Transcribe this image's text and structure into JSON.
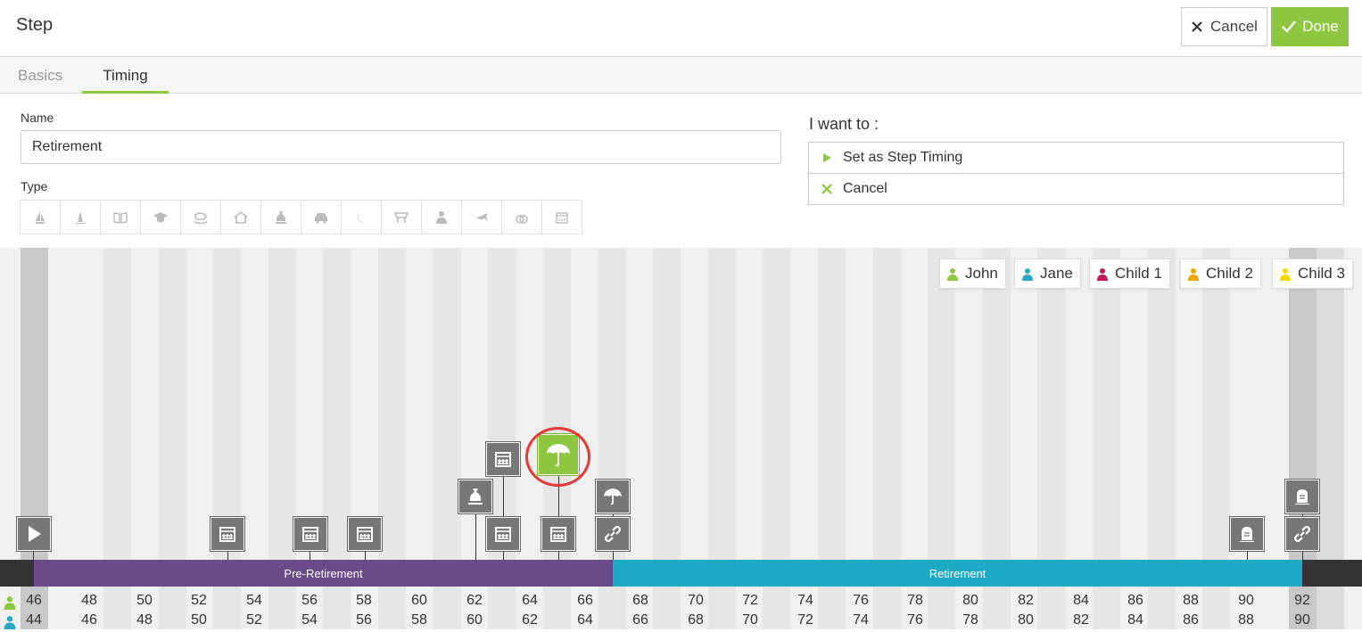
{
  "header": {
    "title": "Step",
    "cancel_label": "Cancel",
    "done_label": "Done"
  },
  "tabs": [
    {
      "label": "Basics"
    },
    {
      "label": "Timing"
    }
  ],
  "form": {
    "name_label": "Name",
    "name_value": "Retirement",
    "type_label": "Type",
    "type_icons": [
      "sailboat-icon",
      "cake-icon",
      "book-icon",
      "graduation-cap-icon",
      "rocking-horse-icon",
      "house-icon",
      "money-bag-icon",
      "car-icon",
      "moon-icon",
      "awning-icon",
      "person-icon",
      "airplane-icon",
      "rings-icon",
      "calendar-icon"
    ]
  },
  "actions": {
    "heading": "I want to :",
    "set_timing_label": "Set as Step Timing",
    "cancel_label": "Cancel"
  },
  "legend": [
    {
      "name": "John",
      "color": "#8dc63f"
    },
    {
      "name": "Jane",
      "color": "#29a8c4"
    },
    {
      "name": "Child 1",
      "color": "#c2185b"
    },
    {
      "name": "Child 2",
      "color": "#f0a500"
    },
    {
      "name": "Child 3",
      "color": "#f5d800"
    }
  ],
  "phases": [
    {
      "label": "Pre-Retirement",
      "color": "#6b4a8a"
    },
    {
      "label": "Retirement",
      "color": "#1eaac4"
    }
  ],
  "ages": {
    "john": [
      "46",
      "48",
      "50",
      "52",
      "54",
      "56",
      "58",
      "60",
      "62",
      "64",
      "66",
      "68",
      "70",
      "72",
      "74",
      "76",
      "78",
      "80",
      "82",
      "84",
      "86",
      "88",
      "90",
      "92"
    ],
    "jane": [
      "44",
      "46",
      "48",
      "50",
      "52",
      "54",
      "56",
      "58",
      "60",
      "62",
      "64",
      "66",
      "68",
      "70",
      "72",
      "74",
      "76",
      "78",
      "80",
      "82",
      "84",
      "86",
      "88",
      "90"
    ]
  },
  "events": [
    {
      "name": "play-icon"
    },
    {
      "name": "calendar-icon"
    },
    {
      "name": "calendar-icon"
    },
    {
      "name": "calendar-icon"
    },
    {
      "name": "money-bag-icon"
    },
    {
      "name": "calendar-icon"
    },
    {
      "name": "calendar-icon"
    },
    {
      "name": "umbrella-icon",
      "selected": true
    },
    {
      "name": "calendar-icon"
    },
    {
      "name": "umbrella-icon"
    },
    {
      "name": "link-icon"
    },
    {
      "name": "tombstone-icon"
    },
    {
      "name": "tombstone-icon"
    },
    {
      "name": "link-icon"
    }
  ]
}
